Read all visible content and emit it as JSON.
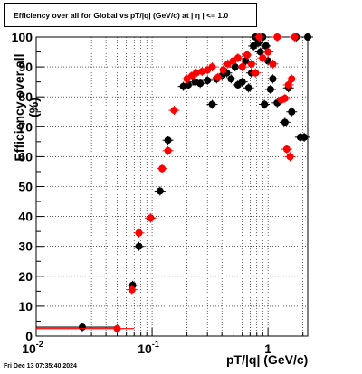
{
  "chart_data": {
    "type": "scatter",
    "title": "Efficiency over all for Global vs pT/|q| (GeV/c) at |  η  | <= 1.0",
    "xlabel": "pT/|q| (GeV/c)",
    "ylabel": "Efficiency over all (%)",
    "xscale": "log",
    "xlim": [
      0.01,
      2.2
    ],
    "ylim": [
      0,
      100
    ],
    "yticks": [
      "0",
      "10",
      "20",
      "30",
      "40",
      "50",
      "60",
      "70",
      "80",
      "90",
      "100"
    ],
    "grid": true,
    "series": [
      {
        "color": "#000000",
        "points": [
          {
            "x": 0.025,
            "y": 3,
            "xerr": [
              0.01,
              0.05
            ]
          },
          {
            "x": 0.068,
            "y": 17
          },
          {
            "x": 0.077,
            "y": 30
          },
          {
            "x": 0.097,
            "y": 39.5
          },
          {
            "x": 0.117,
            "y": 48.5
          },
          {
            "x": 0.137,
            "y": 65.5
          },
          {
            "x": 0.186,
            "y": 83.5
          },
          {
            "x": 0.205,
            "y": 84
          },
          {
            "x": 0.235,
            "y": 85
          },
          {
            "x": 0.26,
            "y": 84.5
          },
          {
            "x": 0.3,
            "y": 85.5
          },
          {
            "x": 0.33,
            "y": 77.5
          },
          {
            "x": 0.36,
            "y": 86
          },
          {
            "x": 0.4,
            "y": 87
          },
          {
            "x": 0.44,
            "y": 88
          },
          {
            "x": 0.48,
            "y": 86
          },
          {
            "x": 0.52,
            "y": 90
          },
          {
            "x": 0.55,
            "y": 84
          },
          {
            "x": 0.6,
            "y": 85
          },
          {
            "x": 0.64,
            "y": 92
          },
          {
            "x": 0.68,
            "y": 83
          },
          {
            "x": 0.72,
            "y": 88
          },
          {
            "x": 0.75,
            "y": 97
          },
          {
            "x": 0.78,
            "y": 100
          },
          {
            "x": 0.82,
            "y": 98
          },
          {
            "x": 0.86,
            "y": 95
          },
          {
            "x": 0.9,
            "y": 100
          },
          {
            "x": 0.93,
            "y": 77.5
          },
          {
            "x": 0.96,
            "y": 97
          },
          {
            "x": 1.0,
            "y": 92
          },
          {
            "x": 1.05,
            "y": 82.5
          },
          {
            "x": 1.1,
            "y": 86
          },
          {
            "x": 1.2,
            "y": 78
          },
          {
            "x": 1.4,
            "y": 71.5
          },
          {
            "x": 1.5,
            "y": 83
          },
          {
            "x": 1.6,
            "y": 75
          },
          {
            "x": 1.75,
            "y": 100
          },
          {
            "x": 1.9,
            "y": 66.5
          },
          {
            "x": 2.05,
            "y": 66.5
          },
          {
            "x": 2.2,
            "y": 100
          }
        ]
      },
      {
        "color": "#ff0000",
        "points": [
          {
            "x": 0.05,
            "y": 2.5,
            "xerr": [
              0.01,
              0.07
            ]
          },
          {
            "x": 0.067,
            "y": 15.5
          },
          {
            "x": 0.077,
            "y": 34.5
          },
          {
            "x": 0.097,
            "y": 39.5
          },
          {
            "x": 0.122,
            "y": 56
          },
          {
            "x": 0.137,
            "y": 62
          },
          {
            "x": 0.155,
            "y": 75.5
          },
          {
            "x": 0.2,
            "y": 86
          },
          {
            "x": 0.22,
            "y": 87
          },
          {
            "x": 0.24,
            "y": 88
          },
          {
            "x": 0.27,
            "y": 88.5
          },
          {
            "x": 0.3,
            "y": 89
          },
          {
            "x": 0.33,
            "y": 90
          },
          {
            "x": 0.37,
            "y": 86.5
          },
          {
            "x": 0.41,
            "y": 89
          },
          {
            "x": 0.45,
            "y": 91
          },
          {
            "x": 0.5,
            "y": 92
          },
          {
            "x": 0.55,
            "y": 93
          },
          {
            "x": 0.6,
            "y": 90
          },
          {
            "x": 0.66,
            "y": 94
          },
          {
            "x": 0.72,
            "y": 91
          },
          {
            "x": 0.78,
            "y": 88
          },
          {
            "x": 0.84,
            "y": 100
          },
          {
            "x": 0.9,
            "y": 93
          },
          {
            "x": 1.0,
            "y": 95
          },
          {
            "x": 1.1,
            "y": 91
          },
          {
            "x": 1.2,
            "y": 100
          },
          {
            "x": 1.3,
            "y": 79
          },
          {
            "x": 1.4,
            "y": 79.5
          },
          {
            "x": 1.45,
            "y": 62.5
          },
          {
            "x": 1.5,
            "y": 84
          },
          {
            "x": 1.55,
            "y": 60
          },
          {
            "x": 1.6,
            "y": 86
          },
          {
            "x": 1.7,
            "y": 100
          }
        ]
      }
    ]
  },
  "footer": {
    "datestamp": "Fri Dec 13 07:35:40 2024"
  }
}
